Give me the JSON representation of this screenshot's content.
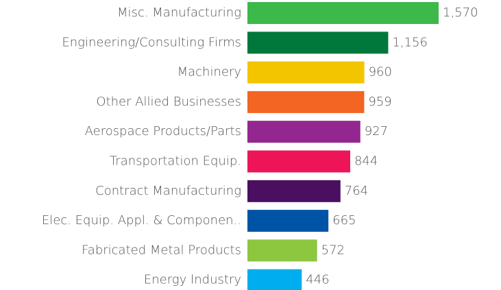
{
  "chart_data": {
    "type": "bar",
    "orientation": "horizontal",
    "categories": [
      "Misc. Manufacturing",
      "Engineering/Consulting Firms",
      "Machinery",
      "Other Allied Businesses",
      "Aerospace Products/Parts",
      "Transportation Equip.",
      "Contract Manufacturing",
      "Elec. Equip. Appl. & Componen..",
      "Fabricated Metal Products",
      "Energy Industry"
    ],
    "values": [
      1570,
      1156,
      960,
      959,
      927,
      844,
      764,
      665,
      572,
      446
    ],
    "value_labels": [
      "1,570",
      "1,156",
      "960",
      "959",
      "927",
      "844",
      "764",
      "665",
      "572",
      "446"
    ],
    "colors": [
      "#3cb94a",
      "#00783c",
      "#f2c500",
      "#f26522",
      "#93278f",
      "#ed1558",
      "#4b0f62",
      "#0054a6",
      "#8dc63f",
      "#00aeef"
    ]
  }
}
